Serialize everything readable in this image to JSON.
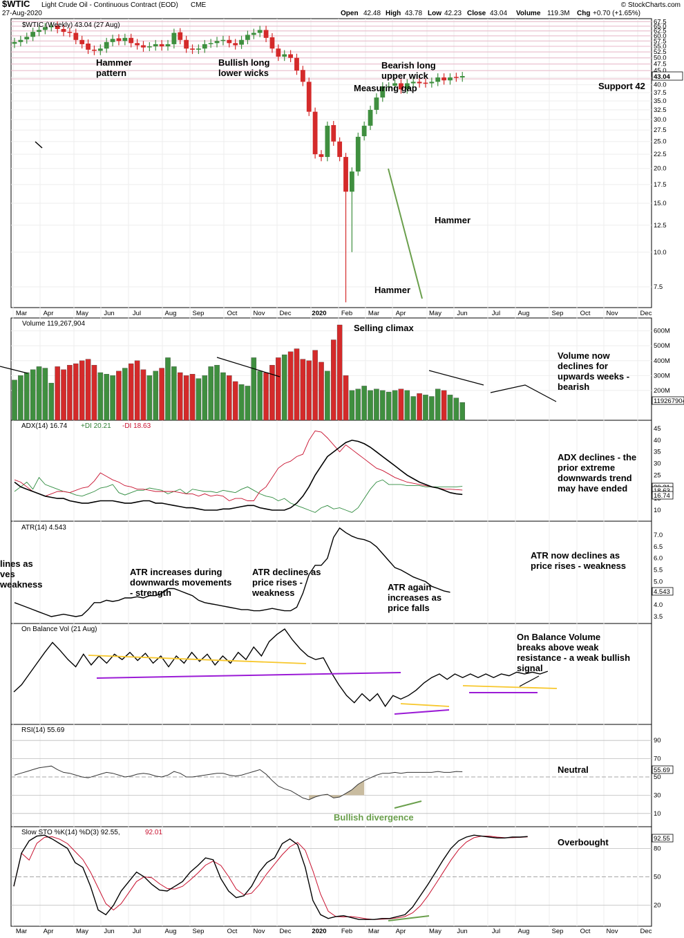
{
  "header": {
    "symbol": "$WTIC",
    "name": "Light Crude Oil - Continuous Contract (EOD)",
    "exchange": "CME",
    "date": "27-Aug-2020",
    "watermark": "© StockCharts.com",
    "open_label": "Open",
    "open": "42.48",
    "high_label": "High",
    "high": "43.78",
    "low_label": "Low",
    "low": "42.23",
    "close_label": "Close",
    "close": "43.04",
    "volume_label": "Volume",
    "volume": "119.3M",
    "chg_label": "Chg",
    "chg": "+0.70 (+1.65%)"
  },
  "colors": {
    "up": "#3f8f3f",
    "down": "#d42a2a",
    "macd": "#000000",
    "signal": "#c8102e",
    "divergence": "#6a9f4c",
    "support": "#e8b7c8",
    "resistance": "#f7c72c",
    "trendline": "#9b1bd6"
  },
  "panels": {
    "price": {
      "title": "$WTIC (Weekly) 43.04 (27 Aug)",
      "last": "43.04",
      "ticks": [
        "67.5",
        "65.0",
        "62.5",
        "60.0",
        "57.5",
        "55.0",
        "52.5",
        "50.0",
        "47.5",
        "45.0",
        "42.5",
        "40.0",
        "37.5",
        "35.0",
        "32.5",
        "30.0",
        "27.5",
        "25.0",
        "22.5",
        "20.0",
        "17.5",
        "15.0",
        "12.5",
        "10.0",
        "7.5"
      ]
    },
    "volume": {
      "title": "Volume 119,267,904",
      "last": "119267904",
      "ticks": [
        "600M",
        "500M",
        "400M",
        "300M",
        "200M"
      ]
    },
    "adx": {
      "title_a": "ADX(14) 16.74",
      "title_b": "+DI 20.21",
      "title_c": "-DI 18.63",
      "ticks": [
        "45",
        "40",
        "35",
        "30",
        "25",
        "20",
        "15",
        "10"
      ],
      "badges": [
        "20.21",
        "18.63",
        "16.74"
      ]
    },
    "atr": {
      "title": "ATR(14) 4.543",
      "badge": "4.543",
      "ticks": [
        "7.0",
        "6.5",
        "6.0",
        "5.5",
        "5.0",
        "4.5",
        "4.0",
        "3.5"
      ]
    },
    "obv": {
      "title": "On Balance Vol (21 Aug)"
    },
    "rsi": {
      "title": "RSI(14) 55.69",
      "badge": "55.69",
      "ticks": [
        "90",
        "70",
        "50",
        "30",
        "10"
      ]
    },
    "sto": {
      "title_a": "Slow STO %K(14) %D(3) 92.55,",
      "title_b": "92.01",
      "badge": "92.55",
      "ticks": [
        "80",
        "50",
        "20"
      ]
    }
  },
  "months": [
    "Mar",
    "Apr",
    "May",
    "Jun",
    "Jul",
    "Aug",
    "Sep",
    "Oct",
    "Nov",
    "Dec",
    "2020",
    "Feb",
    "Mar",
    "Apr",
    "May",
    "Jun",
    "Jul",
    "Aug",
    "Sep",
    "Oct",
    "Nov",
    "Dec"
  ],
  "annotations": {
    "hammer_pattern": [
      "Hammer",
      "pattern"
    ],
    "bullish_wicks": [
      "Bullish long",
      "lower wicks"
    ],
    "bearish_wick": [
      "Bearish long",
      "upper wick"
    ],
    "measuring_gap": "Measuring gap",
    "support": "Support 42",
    "hammer_apr": "Hammer",
    "hammer_mar": "Hammer",
    "selling_climax": "Selling climax",
    "volume_note": [
      "Volume now",
      "declines for",
      "upwards weeks -",
      "bearish"
    ],
    "adx_note": [
      "ADX declines - the",
      "prior extreme",
      "downwards trend",
      "may have ended"
    ],
    "atr_left": [
      "lines as",
      "ves",
      "weakness"
    ],
    "atr_inc": [
      "ATR increases during",
      "downwards movements",
      "- strength"
    ],
    "atr_dec": [
      "ATR declines as",
      "price rises -",
      "weakness"
    ],
    "atr_again": [
      "ATR again",
      "increases as",
      "price falls"
    ],
    "atr_now": [
      "ATR now declines as",
      "price rises - weakness"
    ],
    "obv_note": [
      "On Balance Volume",
      "breaks above weak",
      "resistance - a weak bullish",
      "signal"
    ],
    "rsi_neutral": "Neutral",
    "bullish_divergence": "Bullish divergence",
    "overbought": "Overbought"
  },
  "chart_data": [
    {
      "type": "candlestick",
      "name": "Light Crude Oil weekly",
      "yscale": "log",
      "ylim": [
        6.5,
        68
      ],
      "weeks_start": "2019-03",
      "weeks_end": "2020-08-27",
      "close": [
        57.0,
        58.0,
        59.5,
        62.0,
        63.0,
        64.5,
        65.0,
        63.5,
        62.0,
        61.5,
        58.0,
        56.0,
        53.5,
        53.0,
        54.0,
        57.0,
        58.5,
        57.5,
        59.0,
        56.5,
        55.5,
        54.5,
        55.0,
        56.0,
        55.0,
        56.0,
        61.5,
        58.0,
        54.0,
        53.5,
        54.0,
        56.0,
        56.5,
        57.5,
        58.0,
        56.5,
        55.5,
        58.0,
        60.5,
        61.5,
        63.0,
        59.0,
        54.0,
        50.5,
        51.5,
        50.0,
        45.0,
        41.0,
        32.0,
        22.5,
        22.0,
        28.5,
        25.0,
        22.0,
        16.5,
        19.5,
        26.0,
        28.5,
        32.5,
        36.0,
        39.5,
        39.5,
        40.5,
        38.5,
        40.5,
        41.0,
        40.5,
        40.5,
        41.0,
        42.5,
        41.5,
        42.5,
        42.5,
        43.0
      ]
    },
    {
      "type": "bar",
      "name": "Volume",
      "unit": "M",
      "values": [
        270,
        300,
        320,
        340,
        360,
        350,
        250,
        360,
        340,
        370,
        380,
        400,
        410,
        370,
        320,
        310,
        300,
        330,
        350,
        380,
        400,
        340,
        300,
        330,
        350,
        420,
        360,
        320,
        300,
        310,
        280,
        300,
        360,
        370,
        320,
        300,
        260,
        240,
        230,
        420,
        330,
        320,
        370,
        420,
        440,
        460,
        480,
        410,
        400,
        470,
        390,
        330,
        540,
        640,
        300,
        200,
        210,
        230,
        200,
        210,
        200,
        190,
        200,
        210,
        200,
        160,
        180,
        170,
        160,
        210,
        200,
        170,
        150,
        120
      ]
    },
    {
      "type": "line",
      "name": "ADX(14)",
      "last": 16.74
    },
    {
      "type": "line",
      "name": "+DI",
      "last": 20.21
    },
    {
      "type": "line",
      "name": "-DI",
      "last": 18.63
    },
    {
      "type": "line",
      "name": "ATR(14)",
      "last": 4.543
    },
    {
      "type": "line",
      "name": "On Balance Vol"
    },
    {
      "type": "line",
      "name": "RSI(14)",
      "last": 55.69
    },
    {
      "type": "line",
      "name": "Slow STO %K",
      "last": 92.55
    },
    {
      "type": "line",
      "name": "Slow STO %D",
      "last": 92.01
    }
  ]
}
